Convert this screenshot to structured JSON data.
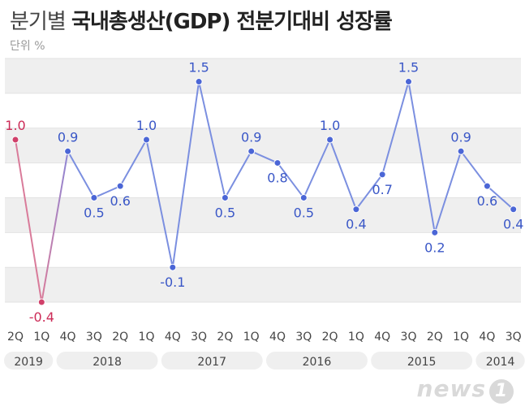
{
  "header": {
    "title_prefix": "분기별",
    "title_main": "국내총생산(GDP) 전분기대비 성장률",
    "unit": "단위 %"
  },
  "watermark": "news1",
  "colors": {
    "series_blue": "#7b8fe0",
    "series_red": "#d0406a",
    "marker_blue": "#4b66d6",
    "label_blue": "#3a57c7",
    "label_red": "#cc2b57",
    "band_gray": "#efefef"
  },
  "chart_data": {
    "type": "line",
    "title": "분기별 국내총생산(GDP) 전분기대비 성장률",
    "ylabel": "단위 %",
    "x": [
      "2Q",
      "1Q",
      "4Q",
      "3Q",
      "2Q",
      "1Q",
      "4Q",
      "3Q",
      "2Q",
      "1Q",
      "4Q",
      "3Q",
      "2Q",
      "1Q",
      "4Q",
      "3Q",
      "2Q",
      "1Q",
      "4Q",
      "3Q"
    ],
    "years": [
      {
        "label": "2019",
        "start": 0,
        "end": 1
      },
      {
        "label": "2018",
        "start": 2,
        "end": 5
      },
      {
        "label": "2017",
        "start": 6,
        "end": 9
      },
      {
        "label": "2016",
        "start": 10,
        "end": 13
      },
      {
        "label": "2015",
        "start": 14,
        "end": 17
      },
      {
        "label": "2014",
        "start": 18,
        "end": 19
      }
    ],
    "values": [
      1.0,
      -0.4,
      0.9,
      0.5,
      0.6,
      1.0,
      -0.1,
      1.5,
      0.5,
      0.9,
      0.8,
      0.5,
      1.0,
      0.4,
      0.7,
      1.5,
      0.2,
      0.9,
      0.6,
      0.4
    ],
    "labels": [
      "1.0",
      "-0.4",
      "0.9",
      "0.5",
      "0.6",
      "1.0",
      "-0.1",
      "1.5",
      "0.5",
      "0.9",
      "0.8",
      "0.5",
      "1.0",
      "0.4",
      "0.7",
      "1.5",
      "0.2",
      "0.9",
      "0.6",
      "0.4"
    ],
    "highlight_indices": [
      0,
      1
    ],
    "ylim": [
      -0.6,
      1.8
    ],
    "grid": "horizontal bands"
  }
}
